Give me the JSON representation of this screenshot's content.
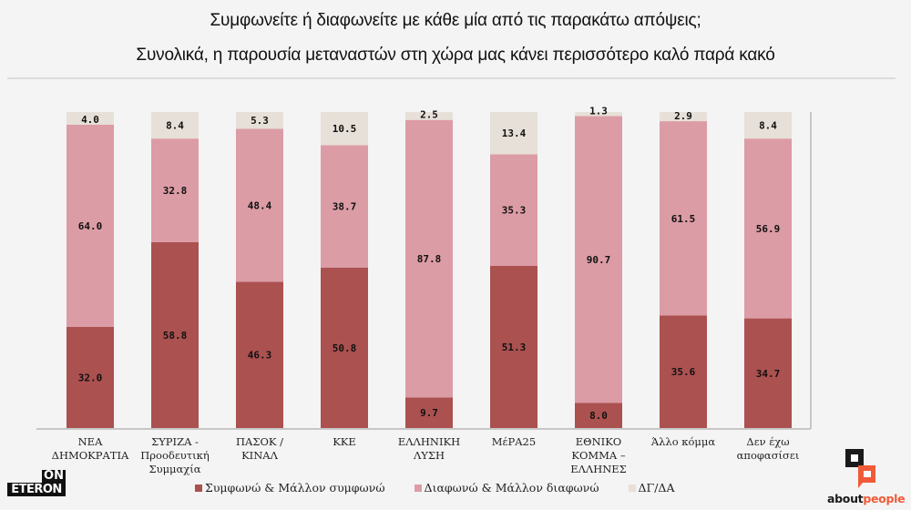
{
  "header": {
    "question": "Συμφωνείτε ή διαφωνείτε με κάθε μία από τις παρακάτω απόψεις;",
    "statement": "Συνολικά, η παρουσία μεταναστών στη χώρα μας κάνει περισσότερο καλό παρά κακό"
  },
  "colors": {
    "agree": "#ab5150",
    "disagree": "#dc9ca5",
    "dk": "#e6e0d8",
    "axis": "#b8b8b8"
  },
  "chart_data": {
    "type": "bar",
    "stacked": true,
    "orientation": "vertical",
    "title": "Συμφωνείτε ή διαφωνείτε με κάθε μία από τις παρακάτω απόψεις; Συνολικά, η παρουσία μεταναστών στη χώρα μας κάνει περισσότερο καλό παρά κακό",
    "xlabel": "",
    "ylabel": "",
    "ylim": [
      0,
      100
    ],
    "grid": false,
    "legend_position": "bottom",
    "categories": [
      [
        "ΝΕΑ",
        "ΔΗΜΟΚΡΑΤΙΑ"
      ],
      [
        "ΣΥΡΙΖΑ -",
        "Προοδευτική",
        "Συμμαχία"
      ],
      [
        "ΠΑΣΟΚ / ΚΙΝΑΛ"
      ],
      [
        "ΚΚΕ"
      ],
      [
        "ΕΛΛΗΝΙΚΗ",
        "ΛΥΣΗ"
      ],
      [
        "ΜέΡΑ25"
      ],
      [
        "ΕΘΝΙΚΟ",
        "ΚΟΜΜΑ –",
        "ΕΛΛΗΝΕΣ"
      ],
      [
        "Άλλο κόμμα"
      ],
      [
        "Δεν έχω",
        "αποφασίσει"
      ]
    ],
    "series": [
      {
        "name": "Συμφωνώ & Μάλλον συμφωνώ",
        "key": "agree",
        "values": [
          32.0,
          58.8,
          46.3,
          50.8,
          9.7,
          51.3,
          8.0,
          35.6,
          34.7
        ],
        "labels": [
          "32.0",
          "58.8",
          "46.3",
          "50.8",
          "9.7",
          "51.3",
          "8.0",
          "35.6",
          "34.7"
        ]
      },
      {
        "name": "Διαφωνώ & Μάλλον διαφωνώ",
        "key": "disagree",
        "values": [
          64.0,
          32.8,
          48.4,
          38.7,
          87.8,
          35.3,
          90.7,
          61.5,
          56.9
        ],
        "labels": [
          "64.0",
          "32.8",
          "48.4",
          "38.7",
          "87.8",
          "35.3",
          "90.7",
          "61.5",
          "56.9"
        ]
      },
      {
        "name": "ΔΓ/ΔΑ",
        "key": "dk",
        "values": [
          4.0,
          8.4,
          5.3,
          10.5,
          2.5,
          13.4,
          1.3,
          2.9,
          8.4
        ],
        "labels": [
          "4.0",
          "8.4",
          "5.3",
          "10.5",
          "2.5",
          "13.4",
          "1.3",
          "2.9",
          "8.4"
        ]
      }
    ]
  },
  "legend": [
    {
      "label": "Συμφωνώ & Μάλλον συμφωνώ",
      "key": "agree"
    },
    {
      "label": "Διαφωνώ & Μάλλον διαφωνώ",
      "key": "disagree"
    },
    {
      "label": "ΔΓ/ΔΑ",
      "key": "dk"
    }
  ],
  "logos": {
    "left_top": "ON",
    "left_bottom": "ETERON",
    "right_prefix": "about",
    "right_suffix": "people"
  }
}
